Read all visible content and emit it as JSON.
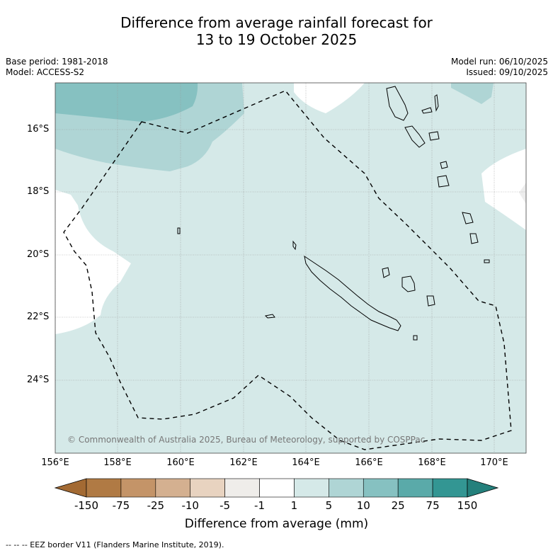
{
  "title": {
    "line1": "Difference from average rainfall forecast for",
    "line2": "13 to 19 October 2025"
  },
  "meta": {
    "base_period": "Base period: 1981-2018",
    "model": "Model: ACCESS-S2",
    "model_run": "Model run: 06/10/2025",
    "issued": "Issued: 09/10/2025"
  },
  "map": {
    "lat_labels": [
      "16°S",
      "18°S",
      "20°S",
      "22°S",
      "24°S"
    ],
    "lon_labels": [
      "156°E",
      "158°E",
      "160°E",
      "162°E",
      "164°E",
      "166°E",
      "168°E",
      "170°E"
    ],
    "copyright": "© Commonwealth of Australia 2025, Bureau of Meteorology, supported by COSPPac",
    "dominant_category": "1 to 5 mm"
  },
  "colorbar": {
    "ticks": [
      "-150",
      "-75",
      "-25",
      "-10",
      "-5",
      "-1",
      "1",
      "5",
      "10",
      "25",
      "75",
      "150"
    ],
    "colors": [
      "#a36a33",
      "#b07a44",
      "#c49468",
      "#d4b090",
      "#e8d3c0",
      "#efedea",
      "#ffffff",
      "#d5e9e8",
      "#afd5d5",
      "#86c1c1",
      "#5aaaa9",
      "#339693",
      "#24807c"
    ],
    "label": "Difference from average (mm)"
  },
  "legend": {
    "footer": "--  --  -- EEZ border V11 (Flanders Marine Institute, 2019)."
  }
}
